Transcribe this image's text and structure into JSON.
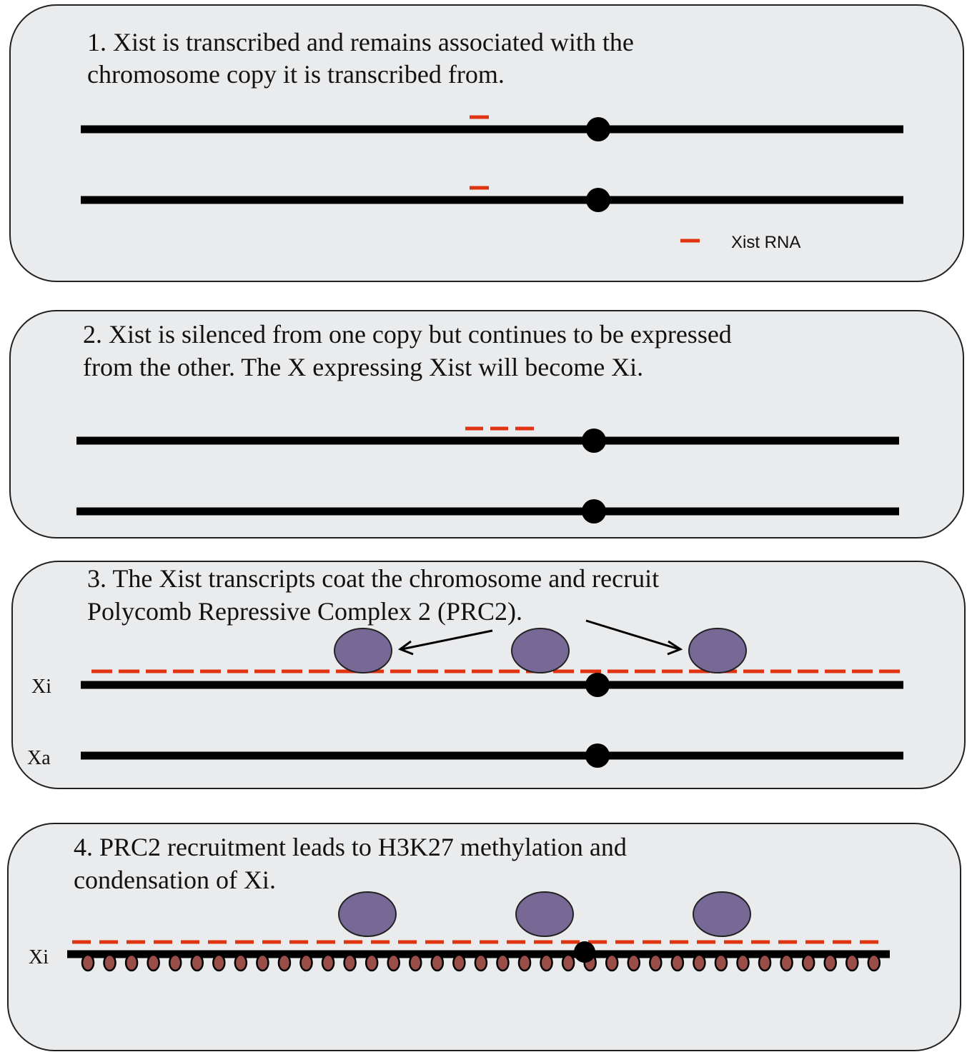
{
  "panels": [
    {
      "lines": [
        "1. Xist is transcribed and remains associated with the",
        "chromosome copy it is transcribed from."
      ]
    },
    {
      "lines": [
        "2. Xist is silenced from one copy but continues to be expressed",
        "from the other. The X expressing Xist will become Xi."
      ]
    },
    {
      "lines": [
        "3. The Xist transcripts coat the chromosome and recruit",
        "Polycomb Repressive Complex 2 (PRC2)."
      ],
      "labels": {
        "xi": "Xi",
        "xa": "Xa"
      }
    },
    {
      "lines": [
        "4. PRC2 recruitment leads to H3K27 methylation and",
        "condensation of Xi."
      ],
      "labels": {
        "xi": "Xi"
      }
    }
  ],
  "legend": {
    "xist_rna": "Xist RNA"
  },
  "colors": {
    "panel": "#eaebed",
    "xist_rna": "#e0330f",
    "prc2": "#786896",
    "methylation": "#9a4e48",
    "chromosome": "#000000"
  }
}
